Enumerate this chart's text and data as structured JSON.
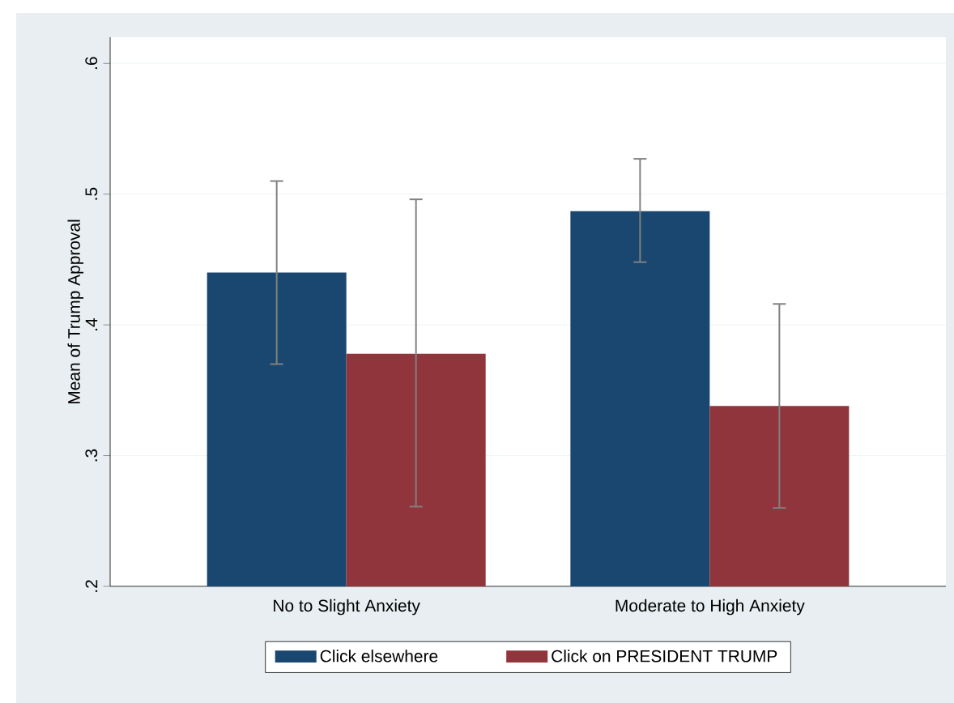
{
  "chart_data": {
    "type": "bar",
    "ylabel": "Mean of Trump Approval",
    "categories": [
      "No to Slight Anxiety",
      "Moderate to High Anxiety"
    ],
    "series": [
      {
        "name": "Click elsewhere",
        "color": "#1a476f",
        "values": [
          0.44,
          0.487
        ],
        "errors": [
          [
            0.37,
            0.51
          ],
          [
            0.448,
            0.527
          ]
        ]
      },
      {
        "name": "Click on PRESIDENT TRUMP",
        "color": "#90353b",
        "values": [
          0.378,
          0.338
        ],
        "errors": [
          [
            0.261,
            0.496
          ],
          [
            0.26,
            0.416
          ]
        ]
      }
    ],
    "ylim": [
      0.2,
      0.62
    ],
    "yticks": [
      {
        "value": 0.2,
        "label": ".2"
      },
      {
        "value": 0.3,
        "label": ".3"
      },
      {
        "value": 0.4,
        "label": ".4"
      },
      {
        "value": 0.5,
        "label": ".5"
      },
      {
        "value": 0.6,
        "label": ".6"
      }
    ],
    "grid": "y",
    "legend": "bottom"
  }
}
